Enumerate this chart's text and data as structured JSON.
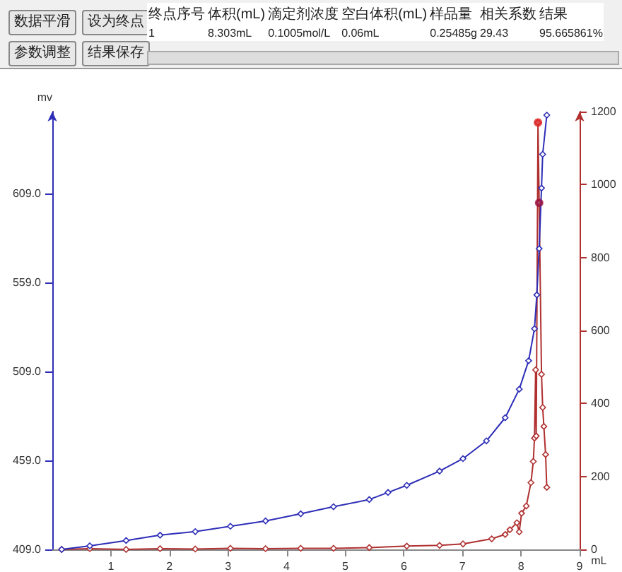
{
  "chart_data": {
    "type": "line",
    "xlabel": "mL",
    "ylabel": "mv",
    "xlim": [
      0,
      9
    ],
    "xticks": [
      1,
      2,
      3,
      4,
      5,
      6,
      7,
      8,
      9
    ],
    "ylim": [
      409,
      655
    ],
    "yticks": [
      {
        "value": 409,
        "label": "409.0"
      },
      {
        "value": 459,
        "label": "459.0"
      },
      {
        "value": 509,
        "label": "509.0"
      },
      {
        "value": 559,
        "label": "559.0"
      },
      {
        "value": 609,
        "label": "609.0"
      }
    ],
    "y2lim": [
      0,
      1200
    ],
    "y2ticks": [
      0,
      200,
      400,
      600,
      800,
      1000,
      1200
    ],
    "marker": "diamond",
    "grid": false,
    "series": [
      {
        "color": "#2e2eb8",
        "x": [
          0.16,
          0.64,
          1.26,
          1.84,
          2.44,
          3.04,
          3.64,
          4.24,
          4.8,
          5.41,
          5.73,
          6.05,
          6.61,
          7.01,
          7.41,
          7.73,
          7.97,
          8.13,
          8.23,
          8.27,
          8.31,
          8.35,
          8.37,
          8.44
        ],
        "values": [
          409,
          411,
          414,
          417,
          419,
          422,
          425,
          429,
          433,
          437,
          441,
          445,
          453,
          460,
          470,
          483,
          499,
          515,
          533,
          552,
          578,
          612,
          631,
          653
        ]
      },
      {
        "color": "#b03030",
        "axis": "y2",
        "x": [
          0.16,
          0.64,
          1.26,
          1.84,
          2.44,
          3.04,
          3.64,
          4.24,
          4.8,
          5.41,
          6.05,
          6.61,
          7.01,
          7.5,
          7.73,
          7.81,
          7.93,
          7.97,
          8.01,
          8.09,
          8.17,
          8.21,
          8.23,
          8.25,
          8.26,
          8.29,
          8.31,
          8.35,
          8.37,
          8.39,
          8.42,
          8.44
        ],
        "values": [
          0,
          2,
          0,
          2,
          1,
          3,
          2,
          3,
          3,
          5,
          9,
          11,
          15,
          29,
          41,
          54,
          73,
          48,
          99,
          119,
          183,
          241,
          305,
          492,
          311,
          1170,
          950,
          480,
          389,
          337,
          260,
          170
        ]
      },
      {
        "type": "scatter",
        "axis": "y2",
        "marker": "circle",
        "x": [
          8.29,
          8.31
        ],
        "values": [
          1170,
          950
        ],
        "colors": [
          "#e02020",
          "#9a1040"
        ]
      }
    ],
    "annotations": [
      "数据平滑",
      "设为终点",
      "参数调整",
      "结果保存",
      "终点序号",
      "体积(mL)",
      "滴定剂浓度",
      "空白体积(mL)",
      "样品量",
      "相关系数",
      "结果",
      "1",
      "8.303mL",
      "0.1005mol/L",
      "0.06mL",
      "0.25485g",
      "29.43",
      "95.665861%"
    ]
  }
}
